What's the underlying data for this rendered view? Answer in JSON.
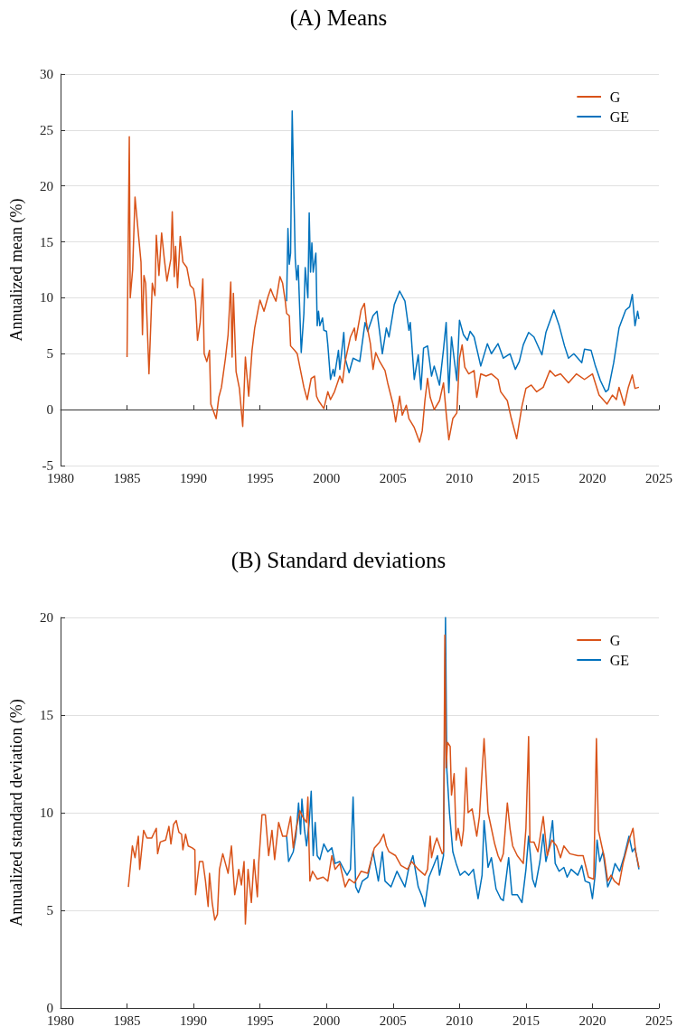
{
  "chart_data": [
    {
      "type": "line",
      "title": "(A) Means",
      "ylabel": "Annualized mean (%)",
      "xlim": [
        1980,
        2025
      ],
      "xticks": [
        1980,
        1985,
        1990,
        1995,
        2000,
        2005,
        2010,
        2015,
        2020,
        2025
      ],
      "ylim": [
        -5,
        30
      ],
      "yticks": [
        -5,
        0,
        5,
        10,
        15,
        20,
        25,
        30
      ],
      "grid": "y",
      "legend": "top right",
      "series": [
        {
          "name": "G",
          "color": "#d95319",
          "x": [
            1985.0,
            1985.17,
            1985.24,
            1985.42,
            1985.6,
            1985.87,
            1986.05,
            1986.16,
            1986.27,
            1986.4,
            1986.65,
            1986.9,
            1987.1,
            1987.2,
            1987.4,
            1987.6,
            1987.8,
            1988.0,
            1988.3,
            1988.4,
            1988.55,
            1988.65,
            1988.8,
            1989.0,
            1989.2,
            1989.5,
            1989.75,
            1990.0,
            1990.15,
            1990.3,
            1990.5,
            1990.7,
            1990.8,
            1991.0,
            1991.2,
            1991.3,
            1991.7,
            1991.9,
            1992.1,
            1992.4,
            1992.6,
            1992.8,
            1992.9,
            1993.0,
            1993.2,
            1993.45,
            1993.7,
            1993.9,
            1994.15,
            1994.4,
            1994.6,
            1994.85,
            1995.0,
            1995.3,
            1995.6,
            1995.8,
            1996.0,
            1996.2,
            1996.5,
            1996.7,
            1996.9,
            1997.0,
            1997.2,
            1997.3,
            1997.6,
            1997.8,
            1998.1,
            1998.3,
            1998.55,
            1998.85,
            1999.1,
            1999.25,
            1999.4,
            1999.8,
            2000.1,
            2000.3,
            2000.6,
            2001.0,
            2001.2,
            2001.4,
            2001.8,
            2002.1,
            2002.2,
            2002.6,
            2002.85,
            2003.0,
            2003.3,
            2003.5,
            2003.7,
            2004.0,
            2004.4,
            2004.6,
            2005.0,
            2005.2,
            2005.5,
            2005.7,
            2006.0,
            2006.2,
            2006.6,
            2007.0,
            2007.2,
            2007.4,
            2007.6,
            2007.8,
            2008.1,
            2008.5,
            2008.8,
            2009.0,
            2009.2,
            2009.5,
            2009.8,
            2010.0,
            2010.2,
            2010.4,
            2010.7,
            2011.1,
            2011.3,
            2011.6,
            2012.0,
            2012.4,
            2012.9,
            2013.1,
            2013.6,
            2013.9,
            2014.3,
            2014.7,
            2015.0,
            2015.4,
            2015.8,
            2016.3,
            2016.8,
            2017.2,
            2017.6,
            2018.2,
            2018.8,
            2019.4,
            2020.0,
            2020.5,
            2021.1,
            2021.5,
            2021.8,
            2022.0,
            2022.4,
            2022.7,
            2023.0,
            2023.2,
            2023.5
          ],
          "values": [
            4.7,
            24.4,
            10.0,
            12.5,
            19.0,
            15.5,
            13.2,
            6.7,
            12.0,
            11.3,
            3.2,
            11.3,
            10.2,
            15.6,
            12.0,
            15.8,
            13.5,
            11.5,
            13.5,
            17.7,
            11.9,
            14.6,
            10.9,
            15.5,
            13.2,
            12.7,
            11.1,
            10.8,
            9.7,
            6.2,
            7.8,
            11.7,
            5.0,
            4.3,
            5.3,
            0.5,
            -0.8,
            1.1,
            2.0,
            4.6,
            6.7,
            11.4,
            4.7,
            10.4,
            3.4,
            1.9,
            -1.5,
            4.7,
            1.2,
            5.3,
            7.3,
            8.9,
            9.8,
            8.8,
            10.1,
            10.8,
            10.2,
            9.7,
            11.9,
            11.3,
            9.7,
            8.6,
            8.4,
            5.7,
            5.3,
            5.0,
            3.2,
            2.0,
            0.9,
            2.8,
            3.0,
            1.2,
            0.8,
            0.1,
            1.6,
            0.9,
            1.6,
            3.0,
            2.4,
            4.3,
            6.5,
            7.3,
            6.2,
            8.9,
            9.5,
            7.8,
            5.9,
            3.6,
            5.1,
            4.3,
            3.5,
            2.4,
            0.5,
            -1.1,
            1.2,
            -0.5,
            0.4,
            -0.8,
            -1.6,
            -2.9,
            -1.9,
            0.8,
            2.8,
            1.1,
            0.0,
            0.8,
            2.4,
            -0.3,
            -2.7,
            -0.8,
            -0.3,
            4.6,
            5.8,
            3.8,
            3.2,
            3.5,
            1.1,
            3.2,
            3.0,
            3.2,
            2.7,
            1.6,
            0.8,
            -0.8,
            -2.6,
            0.3,
            1.9,
            2.2,
            1.6,
            2.0,
            3.5,
            3.0,
            3.2,
            2.4,
            3.2,
            2.7,
            3.2,
            1.3,
            0.5,
            1.3,
            0.9,
            2.0,
            0.4,
            2.0,
            3.1,
            1.9,
            2.0
          ]
        },
        {
          "name": "GE",
          "color": "#0072bd",
          "x": [
            1997.0,
            1997.1,
            1997.2,
            1997.3,
            1997.42,
            1997.65,
            1997.76,
            1997.87,
            1998.1,
            1998.3,
            1998.4,
            1998.6,
            1998.7,
            1998.8,
            1998.9,
            1999.0,
            1999.2,
            1999.3,
            1999.4,
            1999.5,
            1999.7,
            1999.8,
            2000.0,
            2000.1,
            2000.3,
            2000.5,
            2000.6,
            2000.9,
            2001.0,
            2001.3,
            2001.4,
            2001.7,
            2002.0,
            2002.5,
            2002.9,
            2003.1,
            2003.5,
            2003.8,
            2004.2,
            2004.5,
            2004.7,
            2005.1,
            2005.5,
            2005.9,
            2006.2,
            2006.3,
            2006.6,
            2006.9,
            2007.1,
            2007.3,
            2007.6,
            2007.9,
            2008.1,
            2008.5,
            2008.8,
            2009.0,
            2009.2,
            2009.4,
            2009.8,
            2010.0,
            2010.3,
            2010.6,
            2010.8,
            2011.1,
            2011.6,
            2012.1,
            2012.4,
            2012.9,
            2013.3,
            2013.8,
            2014.2,
            2014.5,
            2014.8,
            2015.2,
            2015.6,
            2016.2,
            2016.5,
            2017.1,
            2017.5,
            2017.9,
            2018.2,
            2018.6,
            2019.2,
            2019.4,
            2019.9,
            2020.2,
            2020.6,
            2021.0,
            2021.2,
            2021.6,
            2022.0,
            2022.5,
            2022.8,
            2023.0,
            2023.2,
            2023.4,
            2023.5
          ],
          "values": [
            9.7,
            16.2,
            13.0,
            14.0,
            26.7,
            13.5,
            11.6,
            12.9,
            5.1,
            8.6,
            12.7,
            10.0,
            17.6,
            12.3,
            14.9,
            12.3,
            14.0,
            7.5,
            8.8,
            7.5,
            8.2,
            7.1,
            7.0,
            5.8,
            2.7,
            3.6,
            3.0,
            5.3,
            3.6,
            6.9,
            4.6,
            3.3,
            4.6,
            4.3,
            7.8,
            7.0,
            8.4,
            8.8,
            5.0,
            7.3,
            6.5,
            9.4,
            10.6,
            9.7,
            7.1,
            7.8,
            2.7,
            4.9,
            1.8,
            5.5,
            5.7,
            3.0,
            3.9,
            2.2,
            5.4,
            7.8,
            1.5,
            6.5,
            2.6,
            8.0,
            6.7,
            6.2,
            7.0,
            6.5,
            3.9,
            5.9,
            5.0,
            5.9,
            4.6,
            5.0,
            3.6,
            4.3,
            5.8,
            6.9,
            6.5,
            4.9,
            6.9,
            8.9,
            7.5,
            5.7,
            4.6,
            5.0,
            4.2,
            5.4,
            5.3,
            4.0,
            2.6,
            1.6,
            1.8,
            4.2,
            7.3,
            8.9,
            9.2,
            10.3,
            7.5,
            8.8,
            8.1
          ]
        }
      ]
    },
    {
      "type": "line",
      "title": "(B) Standard deviations",
      "ylabel": "Annualized standard deviation (%)",
      "xlim": [
        1980,
        2025
      ],
      "xticks": [
        1980,
        1985,
        1990,
        1995,
        2000,
        2005,
        2010,
        2015,
        2020,
        2025
      ],
      "ylim": [
        0,
        20
      ],
      "yticks": [
        0,
        5,
        10,
        15,
        20
      ],
      "grid": "y",
      "legend": "top right",
      "series": [
        {
          "name": "G",
          "color": "#d95319",
          "x": [
            1985.1,
            1985.2,
            1985.4,
            1985.6,
            1985.85,
            1985.95,
            1986.25,
            1986.5,
            1986.85,
            1987.2,
            1987.3,
            1987.5,
            1987.9,
            1988.15,
            1988.3,
            1988.5,
            1988.7,
            1988.9,
            1989.1,
            1989.2,
            1989.4,
            1989.6,
            1989.9,
            1990.1,
            1990.15,
            1990.45,
            1990.7,
            1990.9,
            1991.1,
            1991.2,
            1991.4,
            1991.6,
            1991.8,
            1991.95,
            1992.2,
            1992.4,
            1992.6,
            1992.85,
            1993.1,
            1993.25,
            1993.4,
            1993.6,
            1993.8,
            1993.9,
            1994.1,
            1994.35,
            1994.55,
            1994.8,
            1994.9,
            1995.15,
            1995.4,
            1995.65,
            1995.9,
            1996.1,
            1996.4,
            1996.7,
            1997.0,
            1997.3,
            1997.5,
            1997.7,
            1998.0,
            1998.2,
            1998.5,
            1998.6,
            1998.75,
            1998.95,
            1999.3,
            1999.75,
            2000.1,
            2000.4,
            2000.65,
            2001.0,
            2001.4,
            2001.7,
            2002.1,
            2002.6,
            2003.1,
            2003.6,
            2004.0,
            2004.3,
            2004.5,
            2004.7,
            2005.2,
            2005.6,
            2006.1,
            2006.4,
            2006.9,
            2007.4,
            2007.6,
            2007.8,
            2007.9,
            2008.1,
            2008.3,
            2008.7,
            2008.8,
            2008.9,
            2009.0,
            2009.1,
            2009.3,
            2009.4,
            2009.6,
            2009.75,
            2009.9,
            2010.15,
            2010.3,
            2010.5,
            2010.65,
            2010.95,
            2011.3,
            2011.5,
            2011.85,
            2012.15,
            2012.4,
            2012.65,
            2012.9,
            2013.1,
            2013.3,
            2013.6,
            2013.8,
            2014.0,
            2014.35,
            2014.8,
            2015.0,
            2015.2,
            2015.3,
            2015.6,
            2015.9,
            2016.3,
            2016.6,
            2016.95,
            2017.3,
            2017.6,
            2017.85,
            2018.3,
            2018.9,
            2019.3,
            2019.7,
            2020.1,
            2020.3,
            2020.45,
            2020.7,
            2020.9,
            2021.15,
            2021.4,
            2021.65,
            2022.0,
            2022.3,
            2022.75,
            2023.05,
            2023.25,
            2023.5
          ],
          "values": [
            6.2,
            6.9,
            8.3,
            7.7,
            8.8,
            7.1,
            9.1,
            8.7,
            8.7,
            9.2,
            7.9,
            8.5,
            8.6,
            9.3,
            8.4,
            9.4,
            9.6,
            9.0,
            8.9,
            8.1,
            8.9,
            8.3,
            8.2,
            8.1,
            5.8,
            7.5,
            7.5,
            6.5,
            5.2,
            6.9,
            5.4,
            4.5,
            4.8,
            7.1,
            7.9,
            7.4,
            6.9,
            8.3,
            5.8,
            6.4,
            7.1,
            6.3,
            7.5,
            4.3,
            7.1,
            5.4,
            7.6,
            5.7,
            7.4,
            9.9,
            9.9,
            7.8,
            9.1,
            7.6,
            9.5,
            8.8,
            8.8,
            9.8,
            8.2,
            9.1,
            10.1,
            9.8,
            9.5,
            10.8,
            6.5,
            7.0,
            6.6,
            6.7,
            6.5,
            7.8,
            7.1,
            7.4,
            6.2,
            6.6,
            6.4,
            7.0,
            6.9,
            8.2,
            8.5,
            8.9,
            8.3,
            8.0,
            7.8,
            7.3,
            7.1,
            7.5,
            7.1,
            6.8,
            7.1,
            8.8,
            7.7,
            8.3,
            8.7,
            7.9,
            8.0,
            19.1,
            12.3,
            13.6,
            13.4,
            10.9,
            12.0,
            8.6,
            9.2,
            8.3,
            9.1,
            12.3,
            10.0,
            10.2,
            8.8,
            9.8,
            13.8,
            10.0,
            9.2,
            8.4,
            7.8,
            7.5,
            7.9,
            10.5,
            9.2,
            8.3,
            7.8,
            7.4,
            9.2,
            13.9,
            8.5,
            8.5,
            8.0,
            9.8,
            7.8,
            8.6,
            8.3,
            7.7,
            8.3,
            7.9,
            7.8,
            7.8,
            6.7,
            6.6,
            13.8,
            9.1,
            8.3,
            7.7,
            6.5,
            6.8,
            6.5,
            6.3,
            7.4,
            8.6,
            9.2,
            8.0,
            7.2
          ]
        },
        {
          "name": "GE",
          "color": "#0072bd",
          "x": [
            1997.0,
            1997.15,
            1997.5,
            1997.7,
            1997.9,
            1998.05,
            1998.15,
            1998.35,
            1998.5,
            1998.7,
            1998.85,
            1999.0,
            1999.15,
            1999.3,
            1999.5,
            1999.8,
            2000.1,
            2000.4,
            2000.65,
            2001.0,
            2001.3,
            2001.55,
            2001.8,
            2002.0,
            2002.2,
            2002.4,
            2002.7,
            2003.1,
            2003.5,
            2003.9,
            2004.2,
            2004.4,
            2004.85,
            2005.3,
            2005.9,
            2006.2,
            2006.5,
            2006.9,
            2007.2,
            2007.4,
            2007.7,
            2008.0,
            2008.35,
            2008.5,
            2008.8,
            2008.95,
            2009.05,
            2009.25,
            2009.5,
            2009.75,
            2010.05,
            2010.4,
            2010.7,
            2011.05,
            2011.4,
            2011.7,
            2011.85,
            2012.15,
            2012.4,
            2012.75,
            2013.1,
            2013.3,
            2013.7,
            2013.95,
            2014.35,
            2014.7,
            2015.0,
            2015.2,
            2015.5,
            2015.7,
            2016.05,
            2016.3,
            2016.5,
            2016.7,
            2017.0,
            2017.2,
            2017.5,
            2017.85,
            2018.1,
            2018.4,
            2018.9,
            2019.2,
            2019.45,
            2019.8,
            2020.0,
            2020.2,
            2020.35,
            2020.55,
            2020.8,
            2021.15,
            2021.4,
            2021.7,
            2022.05,
            2022.4,
            2022.75,
            2023.0,
            2023.2,
            2023.5
          ],
          "values": [
            8.8,
            7.5,
            8.0,
            8.8,
            10.5,
            8.9,
            10.7,
            9.1,
            8.3,
            9.5,
            11.1,
            7.8,
            9.5,
            7.8,
            7.6,
            8.4,
            8.0,
            8.2,
            7.4,
            7.5,
            7.1,
            6.8,
            7.1,
            10.8,
            6.2,
            5.9,
            6.5,
            6.7,
            8.0,
            6.5,
            8.0,
            6.5,
            6.2,
            7.0,
            6.2,
            7.2,
            7.8,
            6.2,
            5.7,
            5.2,
            6.7,
            7.2,
            7.8,
            6.8,
            7.8,
            20.0,
            12.2,
            10.0,
            8.0,
            7.4,
            6.8,
            7.0,
            6.8,
            7.1,
            5.6,
            6.8,
            9.6,
            7.2,
            7.7,
            6.1,
            5.6,
            5.5,
            7.7,
            5.8,
            5.8,
            5.4,
            7.1,
            8.8,
            6.6,
            6.2,
            7.5,
            8.9,
            7.5,
            8.1,
            9.6,
            7.4,
            7.0,
            7.2,
            6.7,
            7.1,
            6.8,
            7.3,
            6.5,
            6.4,
            5.6,
            6.8,
            8.6,
            7.5,
            8.0,
            6.2,
            6.6,
            7.4,
            7.0,
            7.8,
            8.8,
            8.0,
            8.2,
            7.1
          ]
        }
      ]
    }
  ]
}
